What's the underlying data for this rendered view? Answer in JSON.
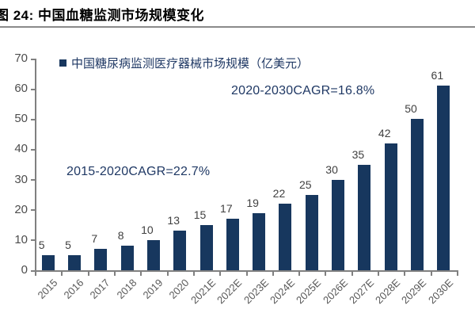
{
  "figure": {
    "title": "图 24:  中国血糖监测市场规模变化"
  },
  "chart_data": {
    "type": "bar",
    "title": "图 24: 中国血糖监测市场规模变化",
    "legend": [
      "中国糖尿病监测医疗器械市场规模（亿美元）"
    ],
    "legend_position": "top-left",
    "categories": [
      "2015",
      "2016",
      "2017",
      "2018",
      "2019",
      "2020",
      "2021E",
      "2022E",
      "2023E",
      "2024E",
      "2025E",
      "2026E",
      "2027E",
      "2028E",
      "2029E",
      "2030E"
    ],
    "values": [
      5,
      5,
      7,
      8,
      10,
      13,
      15,
      17,
      19,
      22,
      25,
      30,
      35,
      42,
      50,
      61
    ],
    "xlabel": "",
    "ylabel": "",
    "ylim": [
      0,
      70
    ],
    "ytick_step": 10,
    "yticks": [
      0,
      10,
      20,
      30,
      40,
      50,
      60,
      70
    ],
    "grid": false,
    "annotations": [
      {
        "text": "2015-2020CAGR=22.7%"
      },
      {
        "text": "2020-2030CAGR=16.8%"
      }
    ],
    "colors": {
      "bar": "#17375E",
      "legend_text": "#1F3864",
      "annotation_text": "#1F3864",
      "axis": "#808080",
      "y_tick_label": "#4d4d4d",
      "x_tick_label": "#595959",
      "value_label": "#404040",
      "title_text": "#000000"
    }
  }
}
